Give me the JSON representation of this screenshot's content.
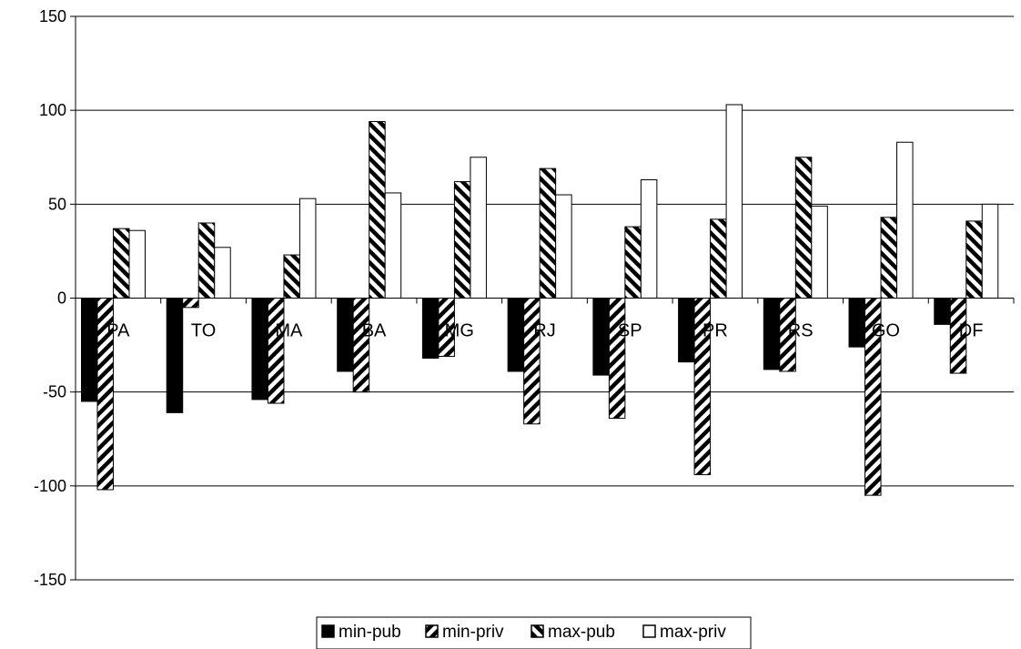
{
  "chart_data": {
    "type": "bar",
    "title": "",
    "xlabel": "",
    "ylabel": "",
    "ylim": [
      -150,
      150
    ],
    "yticks": [
      150,
      100,
      50,
      0,
      -50,
      -100,
      -150
    ],
    "grid": "horizontal",
    "legend_position": "bottom",
    "categories": [
      "PA",
      "TO",
      "MA",
      "BA",
      "MG",
      "RJ",
      "SP",
      "PR",
      "RS",
      "GO",
      "DF"
    ],
    "series": [
      {
        "name": "min-pub",
        "fill": "solid-black",
        "values": [
          -55,
          -61,
          -54,
          -39,
          -32,
          -39,
          -41,
          -34,
          -38,
          -26,
          -14
        ]
      },
      {
        "name": "min-priv",
        "fill": "hatch-forward",
        "values": [
          -102,
          -5,
          -56,
          -50,
          -31,
          -67,
          -64,
          -94,
          -39,
          -105,
          -40
        ]
      },
      {
        "name": "max-pub",
        "fill": "hatch-back",
        "values": [
          37,
          40,
          23,
          94,
          62,
          69,
          38,
          42,
          75,
          43,
          41
        ]
      },
      {
        "name": "max-priv",
        "fill": "white",
        "values": [
          36,
          27,
          53,
          56,
          75,
          55,
          63,
          103,
          49,
          83,
          50
        ]
      }
    ]
  }
}
